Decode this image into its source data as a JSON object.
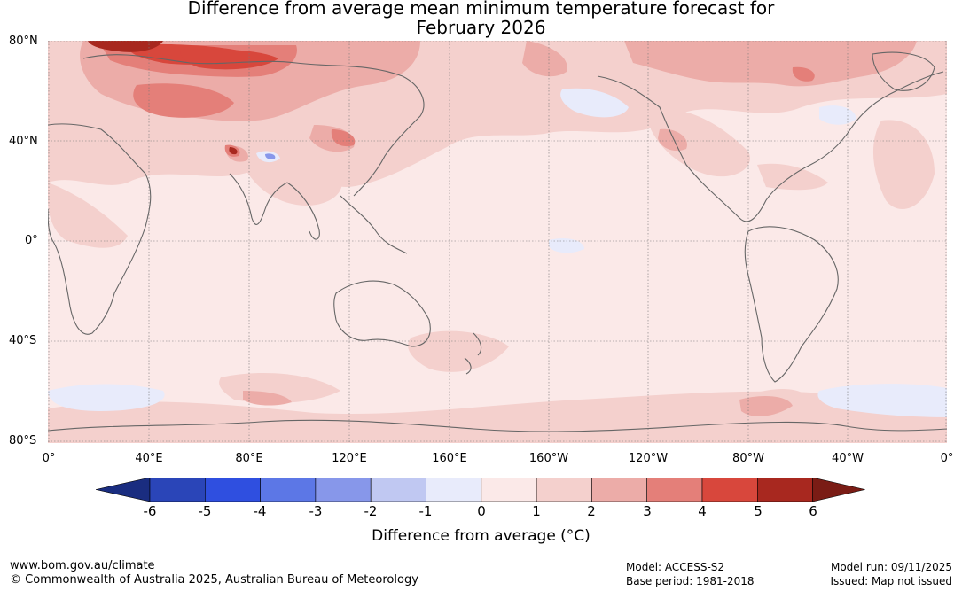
{
  "title": {
    "line1": "Difference from average mean minimum temperature forecast for",
    "line2": "February 2026"
  },
  "map": {
    "lat_labels": [
      "80°N",
      "40°N",
      "0°",
      "40°S",
      "80°S"
    ],
    "lon_labels": [
      "0°",
      "40°E",
      "80°E",
      "120°E",
      "160°E",
      "160°W",
      "120°W",
      "80°W",
      "40°W",
      "0°"
    ]
  },
  "colorbar": {
    "ticks": [
      "-6",
      "-5",
      "-4",
      "-3",
      "-2",
      "-1",
      "0",
      "1",
      "2",
      "3",
      "4",
      "5",
      "6"
    ],
    "label": "Difference from average (°C)",
    "colors": [
      "#1a2d80",
      "#2a45b8",
      "#2f4fe0",
      "#5c77e6",
      "#8797ea",
      "#c0c8f2",
      "#e8ebfb",
      "#fbe9e8",
      "#f4d0cd",
      "#ecaca8",
      "#e47f79",
      "#d8473c",
      "#a8281f",
      "#7a1c15"
    ]
  },
  "footer": {
    "url": "www.bom.gov.au/climate",
    "copyright": "© Commonwealth of Australia 2025, Australian Bureau of Meteorology",
    "model": "Model: ACCESS-S2",
    "base_period": "Base period: 1981-2018",
    "model_run": "Model run: 09/11/2025",
    "issued": "Issued: Map not issued"
  }
}
